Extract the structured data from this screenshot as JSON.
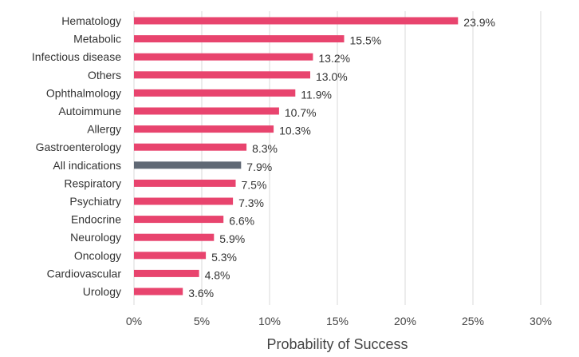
{
  "chart_data": {
    "type": "bar",
    "orientation": "horizontal",
    "xlabel": "Probability of Success",
    "ylabel": "",
    "xlim": [
      0,
      30
    ],
    "x_ticks": [
      0,
      5,
      10,
      15,
      20,
      25,
      30
    ],
    "x_tick_format": "%",
    "grid": "vertical",
    "categories": [
      "Hematology",
      "Metabolic",
      "Infectious disease",
      "Others",
      "Ophthalmology",
      "Autoimmune",
      "Allergy",
      "Gastroenterology",
      "All indications",
      "Respiratory",
      "Psychiatry",
      "Endocrine",
      "Neurology",
      "Oncology",
      "Cardiovascular",
      "Urology"
    ],
    "values": [
      23.9,
      15.5,
      13.2,
      13.0,
      11.9,
      10.7,
      10.3,
      8.3,
      7.9,
      7.5,
      7.3,
      6.6,
      5.9,
      5.3,
      4.8,
      3.6
    ],
    "value_labels": [
      "23.9%",
      "15.5%",
      "13.2%",
      "13.0%",
      "11.9%",
      "10.7%",
      "10.3%",
      "8.3%",
      "7.9%",
      "7.5%",
      "7.3%",
      "6.6%",
      "5.9%",
      "5.3%",
      "4.8%",
      "3.6%"
    ],
    "highlight_category": "All indications",
    "colors": {
      "bar": "#e8446e",
      "highlight": "#5f6874"
    }
  }
}
